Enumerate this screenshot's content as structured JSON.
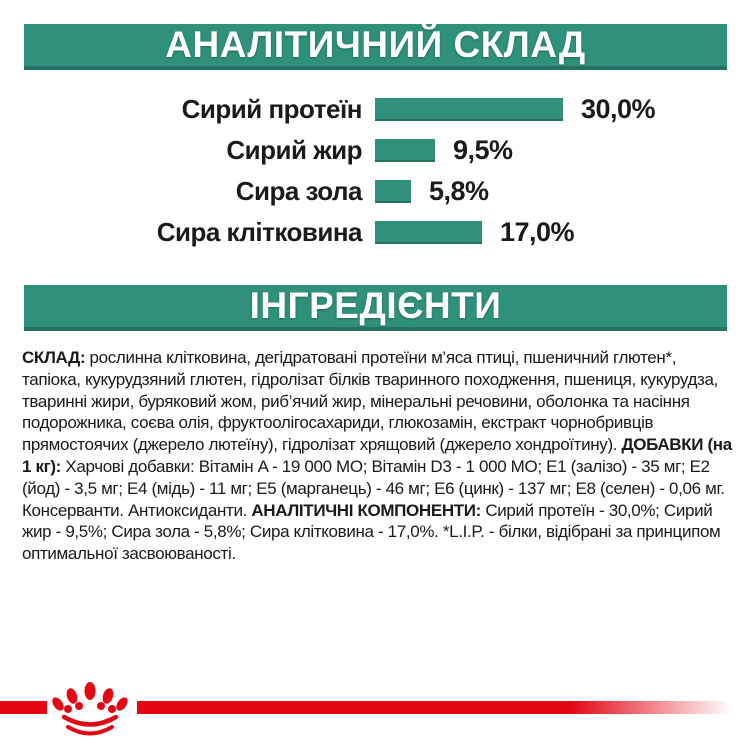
{
  "page": {
    "background": "#FFFFFF"
  },
  "colors": {
    "teal": "#2F907B",
    "teal_dark": "#257263",
    "red": "#E30613",
    "text": "#1A1A1A",
    "banner_text": "#FFFFFF"
  },
  "sections": {
    "analytical_banner": {
      "title": "АНАЛІТИЧНИЙ СКЛАД"
    },
    "ingredients_banner": {
      "title": "ІНГРЕДІЄНТИ"
    }
  },
  "chart_data": {
    "type": "bar",
    "orientation": "horizontal",
    "title": "АНАЛІТИЧНИЙ СКЛАД",
    "categories": [
      "Сирий протеїн",
      "Сирий жир",
      "Сира зола",
      "Сира клітковина"
    ],
    "values": [
      30.0,
      9.5,
      5.8,
      17.0
    ],
    "value_labels": [
      "30,0%",
      "9,5%",
      "5,8%",
      "17,0%"
    ],
    "xlim": [
      0,
      30
    ],
    "bar_color": "#2F907B",
    "grid": false,
    "legend": false
  },
  "ingredients_text": {
    "composition_label": "СКЛАД:",
    "composition": " рослинна клітковина, дегідратовані протеїни м’яса птиці, пшеничний глютен*, тапіока, кукурудзяний глютен, гідролізат білків тваринного походження, пшениця, кукурудза, тваринні жири, буряковий жом, риб’ячий жир, мінеральні речовини, оболонка та насіння подорожника, соєва олія, фруктоолігосахариди, глюкозамін, екстракт чорнобривців прямостоячих (джерело лютеїну), гідролізат хрящовий (джерело хондроїтину). ",
    "additives_label": "ДОБАВКИ (на 1 кг):",
    "additives": " Харчові добавки: Вітамін A - 19 000 МО; Вітамін D3 - 1 000 МО; Е1 (залізо) - 35 мг; Е2 (йод) - 3,5 мг; Е4 (мідь) - 11 мг; Е5 (марганець) - 46 мг; Е6 (цинк) - 137 мг; Е8 (селен) - 0,06 мг. Консерванти. Антиоксиданти. ",
    "analytical_label": "АНАЛІТИЧНІ КОМПОНЕНТИ:",
    "analytical": " Сирий протеїн - 30,0%; Сирий жир - 9,5%; Сира зола - 5,8%; Сира клітковина - 17,0%. *L.I.P. - білки, відібрані за принципом оптимальної засвоюваності."
  },
  "footer": {
    "brand_logo": "royal-canin-crown"
  }
}
